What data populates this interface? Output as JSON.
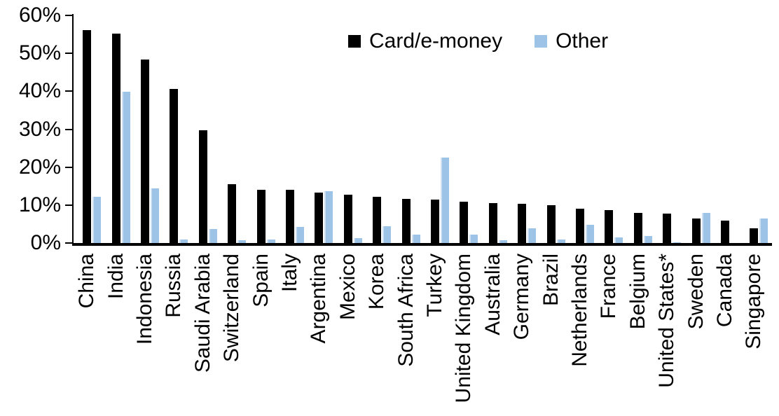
{
  "chart_data": {
    "type": "bar",
    "title": "",
    "categories": [
      "China",
      "India",
      "Indonesia",
      "Russia",
      "Saudi Arabia",
      "Switzerland",
      "Spain",
      "Italy",
      "Argentina",
      "Mexico",
      "Korea",
      "South Africa",
      "Turkey",
      "United Kingdom",
      "Australia",
      "Germany",
      "Brazil",
      "Netherlands",
      "France",
      "Belgium",
      "United States*",
      "Sweden",
      "Canada",
      "Singapore"
    ],
    "series": [
      {
        "name": "Card/e-money",
        "color": "#000000",
        "values": [
          56.2,
          55.2,
          48.4,
          40.6,
          29.8,
          15.5,
          14.1,
          14.0,
          13.2,
          12.8,
          12.2,
          11.7,
          11.5,
          10.9,
          10.6,
          10.4,
          9.9,
          9.1,
          8.6,
          8.0,
          7.8,
          6.4,
          5.9,
          3.8
        ]
      },
      {
        "name": "Other",
        "color": "#9DC3E6",
        "values": [
          12.2,
          39.8,
          14.4,
          0.9,
          3.7,
          0.7,
          0.9,
          4.3,
          13.7,
          1.2,
          4.4,
          2.3,
          22.5,
          2.2,
          0.8,
          3.8,
          1.0,
          4.8,
          1.5,
          1.9,
          0.2,
          7.9,
          0,
          6.5
        ]
      }
    ],
    "xlabel": "",
    "ylabel": "",
    "ylim": [
      0,
      60
    ],
    "ytick_step": 10,
    "ytick_labels": [
      "0%",
      "10%",
      "20%",
      "30%",
      "40%",
      "50%",
      "60%"
    ],
    "grid": false,
    "legend_position": "top-center",
    "axis_color": "#000000",
    "background_color": "#FFFFFF"
  }
}
